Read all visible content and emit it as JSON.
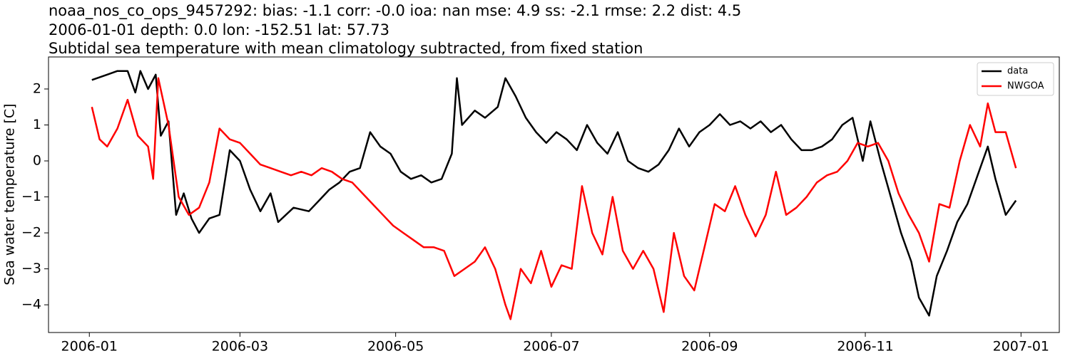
{
  "chart_data": {
    "type": "line",
    "title": [
      "noaa_nos_co_ops_9457292: bias: -1.1  corr: -0.0  ioa: nan  mse: 4.9  ss: -2.1  rmse: 2.2  dist: 4.5",
      "2006-01-01 depth: 0.0 lon: -152.51 lat: 57.73",
      "Subtidal sea temperature with mean climatology subtracted, from fixed station"
    ],
    "y_label": "Sea water temperature [C]",
    "xlim": [
      "2005-12-16",
      "2007-01-16"
    ],
    "xticks": [
      {
        "value": "2006-01-01",
        "label": "2006-01"
      },
      {
        "value": "2006-03-01",
        "label": "2006-03"
      },
      {
        "value": "2006-05-01",
        "label": "2006-05"
      },
      {
        "value": "2006-07-01",
        "label": "2006-07"
      },
      {
        "value": "2006-09-01",
        "label": "2006-09"
      },
      {
        "value": "2006-11-01",
        "label": "2006-11"
      },
      {
        "value": "2007-01-01",
        "label": "2007-01"
      }
    ],
    "ylim": [
      -4.77,
      2.89
    ],
    "yticks": [
      {
        "value": -4,
        "label": "−4"
      },
      {
        "value": -3,
        "label": "−3"
      },
      {
        "value": -2,
        "label": "−2"
      },
      {
        "value": -1,
        "label": "−1"
      },
      0,
      1,
      2
    ],
    "legend": "upper right",
    "series": [
      {
        "name": "data",
        "color": "#000000",
        "x": [
          "2006-01-02",
          "2006-01-08",
          "2006-01-12",
          "2006-01-16",
          "2006-01-19",
          "2006-01-21",
          "2006-01-24",
          "2006-01-27",
          "2006-01-29",
          "2006-02-01",
          "2006-02-04",
          "2006-02-07",
          "2006-02-10",
          "2006-02-13",
          "2006-02-17",
          "2006-02-21",
          "2006-02-25",
          "2006-03-01",
          "2006-03-05",
          "2006-03-09",
          "2006-03-13",
          "2006-03-16",
          "2006-03-22",
          "2006-03-28",
          "2006-04-01",
          "2006-04-05",
          "2006-04-09",
          "2006-04-13",
          "2006-04-17",
          "2006-04-21",
          "2006-04-25",
          "2006-04-29",
          "2006-05-03",
          "2006-05-07",
          "2006-05-11",
          "2006-05-15",
          "2006-05-19",
          "2006-05-23",
          "2006-05-25",
          "2006-05-27",
          "2006-06-01",
          "2006-06-05",
          "2006-06-10",
          "2006-06-13",
          "2006-06-17",
          "2006-06-21",
          "2006-06-25",
          "2006-06-29",
          "2006-07-03",
          "2006-07-07",
          "2006-07-11",
          "2006-07-15",
          "2006-07-19",
          "2006-07-23",
          "2006-07-27",
          "2006-07-31",
          "2006-08-04",
          "2006-08-08",
          "2006-08-12",
          "2006-08-16",
          "2006-08-20",
          "2006-08-24",
          "2006-08-28",
          "2006-09-01",
          "2006-09-05",
          "2006-09-09",
          "2006-09-13",
          "2006-09-17",
          "2006-09-21",
          "2006-09-25",
          "2006-09-29",
          "2006-10-03",
          "2006-10-07",
          "2006-10-11",
          "2006-10-15",
          "2006-10-19",
          "2006-10-23",
          "2006-10-27",
          "2006-10-31",
          "2006-11-03",
          "2006-11-07",
          "2006-11-11",
          "2006-11-15",
          "2006-11-19",
          "2006-11-22",
          "2006-11-26",
          "2006-11-29",
          "2006-12-03",
          "2006-12-07",
          "2006-12-11",
          "2006-12-15",
          "2006-12-19",
          "2006-12-22",
          "2006-12-26",
          "2006-12-30"
        ],
        "values": [
          2.25,
          2.4,
          2.5,
          2.5,
          1.9,
          2.5,
          2.0,
          2.4,
          0.7,
          1.1,
          -1.5,
          -0.9,
          -1.6,
          -2.0,
          -1.6,
          -1.5,
          0.3,
          0.0,
          -0.8,
          -1.4,
          -0.9,
          -1.7,
          -1.3,
          -1.4,
          -1.1,
          -0.8,
          -0.6,
          -0.3,
          -0.2,
          0.8,
          0.4,
          0.2,
          -0.3,
          -0.5,
          -0.4,
          -0.6,
          -0.5,
          0.2,
          2.3,
          1.0,
          1.4,
          1.2,
          1.5,
          2.3,
          1.8,
          1.2,
          0.8,
          0.5,
          0.8,
          0.6,
          0.3,
          1.0,
          0.5,
          0.2,
          0.8,
          0.0,
          -0.2,
          -0.3,
          -0.1,
          0.3,
          0.9,
          0.4,
          0.8,
          1.0,
          1.3,
          1.0,
          1.1,
          0.9,
          1.1,
          0.8,
          1.0,
          0.6,
          0.3,
          0.3,
          0.4,
          0.6,
          1.0,
          1.2,
          0.0,
          1.1,
          0.0,
          -1.0,
          -2.0,
          -2.8,
          -3.8,
          -4.3,
          -3.2,
          -2.5,
          -1.7,
          -1.2,
          -0.4,
          0.4,
          -0.5,
          -1.5,
          -1.1
        ]
      },
      {
        "name": "NWGOA",
        "color": "#ff0000",
        "x": [
          "2006-01-02",
          "2006-01-05",
          "2006-01-08",
          "2006-01-12",
          "2006-01-16",
          "2006-01-20",
          "2006-01-24",
          "2006-01-26",
          "2006-01-28",
          "2006-02-01",
          "2006-02-05",
          "2006-02-09",
          "2006-02-13",
          "2006-02-17",
          "2006-02-21",
          "2006-02-25",
          "2006-03-01",
          "2006-03-05",
          "2006-03-09",
          "2006-03-13",
          "2006-03-17",
          "2006-03-21",
          "2006-03-25",
          "2006-03-29",
          "2006-04-02",
          "2006-04-06",
          "2006-04-10",
          "2006-04-14",
          "2006-04-18",
          "2006-04-22",
          "2006-04-26",
          "2006-04-30",
          "2006-05-04",
          "2006-05-08",
          "2006-05-12",
          "2006-05-16",
          "2006-05-20",
          "2006-05-24",
          "2006-05-28",
          "2006-06-01",
          "2006-06-05",
          "2006-06-09",
          "2006-06-13",
          "2006-06-15",
          "2006-06-19",
          "2006-06-23",
          "2006-06-27",
          "2006-07-01",
          "2006-07-05",
          "2006-07-09",
          "2006-07-13",
          "2006-07-17",
          "2006-07-21",
          "2006-07-25",
          "2006-07-29",
          "2006-08-02",
          "2006-08-06",
          "2006-08-10",
          "2006-08-14",
          "2006-08-18",
          "2006-08-22",
          "2006-08-26",
          "2006-08-30",
          "2006-09-03",
          "2006-09-07",
          "2006-09-11",
          "2006-09-15",
          "2006-09-19",
          "2006-09-23",
          "2006-09-27",
          "2006-10-01",
          "2006-10-05",
          "2006-10-09",
          "2006-10-13",
          "2006-10-17",
          "2006-10-21",
          "2006-10-25",
          "2006-10-29",
          "2006-11-02",
          "2006-11-06",
          "2006-11-10",
          "2006-11-14",
          "2006-11-18",
          "2006-11-22",
          "2006-11-26",
          "2006-11-30",
          "2006-12-04",
          "2006-12-08",
          "2006-12-12",
          "2006-12-16",
          "2006-12-19",
          "2006-12-22",
          "2006-12-26",
          "2006-12-30"
        ],
        "values": [
          1.5,
          0.6,
          0.4,
          0.9,
          1.7,
          0.7,
          0.4,
          -0.5,
          2.3,
          1.0,
          -1.0,
          -1.5,
          -1.3,
          -0.6,
          0.9,
          0.6,
          0.5,
          0.2,
          -0.1,
          -0.2,
          -0.3,
          -0.4,
          -0.3,
          -0.4,
          -0.2,
          -0.3,
          -0.5,
          -0.6,
          -0.9,
          -1.2,
          -1.5,
          -1.8,
          -2.0,
          -2.2,
          -2.4,
          -2.4,
          -2.5,
          -3.2,
          -3.0,
          -2.8,
          -2.4,
          -3.0,
          -4.0,
          -4.4,
          -3.0,
          -3.4,
          -2.5,
          -3.5,
          -2.9,
          -3.0,
          -0.7,
          -2.0,
          -2.6,
          -1.0,
          -2.5,
          -3.0,
          -2.5,
          -3.0,
          -4.2,
          -2.0,
          -3.2,
          -3.6,
          -2.4,
          -1.2,
          -1.4,
          -0.7,
          -1.5,
          -2.1,
          -1.5,
          -0.3,
          -1.5,
          -1.3,
          -1.0,
          -0.6,
          -0.4,
          -0.3,
          0.0,
          0.5,
          0.4,
          0.5,
          0.0,
          -0.9,
          -1.5,
          -2.0,
          -2.8,
          -1.2,
          -1.3,
          0.0,
          1.0,
          0.4,
          1.6,
          0.8,
          0.8,
          -0.2
        ]
      }
    ]
  }
}
